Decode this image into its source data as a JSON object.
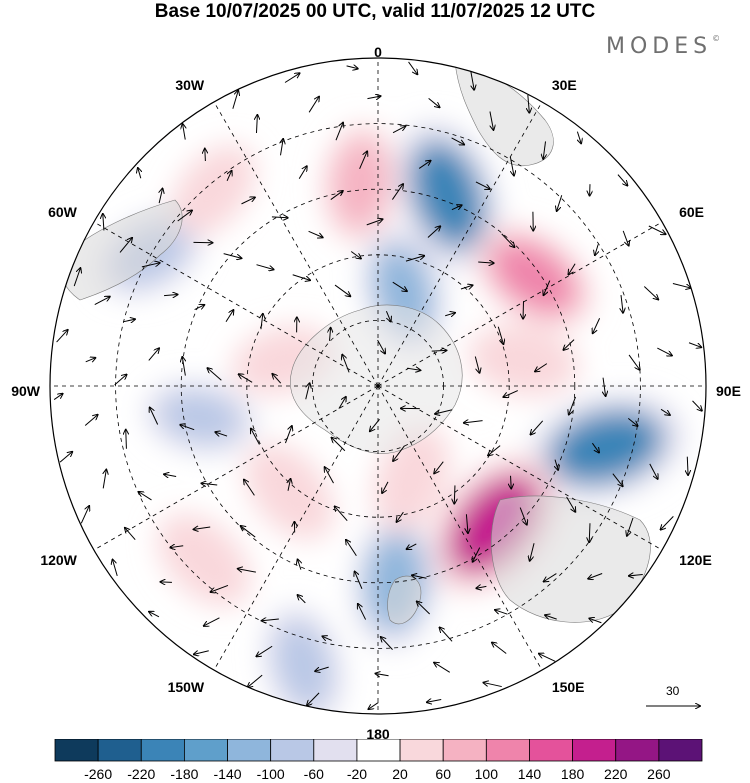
{
  "title": "Base 10/07/2025 00 UTC, valid 11/07/2025 12 UTC",
  "brand": "MODES",
  "brand_mark": "©",
  "projection": "south-polar-stereographic",
  "longitude_labels": [
    {
      "text": "0",
      "lon": 0
    },
    {
      "text": "30E",
      "lon": 30
    },
    {
      "text": "60E",
      "lon": 60
    },
    {
      "text": "90E",
      "lon": 90
    },
    {
      "text": "120E",
      "lon": 120
    },
    {
      "text": "150E",
      "lon": 150
    },
    {
      "text": "180",
      "lon": 180
    },
    {
      "text": "150W",
      "lon": -150
    },
    {
      "text": "120W",
      "lon": -120
    },
    {
      "text": "90W",
      "lon": -90
    },
    {
      "text": "60W",
      "lon": -60
    },
    {
      "text": "30W",
      "lon": -30
    }
  ],
  "vector_reference": {
    "label": "30",
    "value": 30
  },
  "anomaly_centers": [
    {
      "lon": 20,
      "lat_ring": 0.62,
      "value": -180
    },
    {
      "lon": 55,
      "lat_ring": 0.58,
      "value": 120
    },
    {
      "lon": 105,
      "lat_ring": 0.72,
      "value": -200
    },
    {
      "lon": 140,
      "lat_ring": 0.55,
      "value": 200
    },
    {
      "lon": 175,
      "lat_ring": 0.6,
      "value": -120
    },
    {
      "lon": 160,
      "lat_ring": 0.3,
      "value": 60
    },
    {
      "lon": -165,
      "lat_ring": 0.88,
      "value": -80
    },
    {
      "lon": -135,
      "lat_ring": 0.75,
      "value": 60
    },
    {
      "lon": -140,
      "lat_ring": 0.42,
      "value": 60
    },
    {
      "lon": -100,
      "lat_ring": 0.55,
      "value": -60
    },
    {
      "lon": -60,
      "lat_ring": 0.8,
      "value": -60
    },
    {
      "lon": -40,
      "lat_ring": 0.78,
      "value": 40
    },
    {
      "lon": -5,
      "lat_ring": 0.62,
      "value": 80
    },
    {
      "lon": 15,
      "lat_ring": 0.3,
      "value": -100
    },
    {
      "lon": 80,
      "lat_ring": 0.45,
      "value": 60
    },
    {
      "lon": -75,
      "lat_ring": 0.3,
      "value": 40
    }
  ],
  "colorbar": {
    "tick_labels": [
      "-260",
      "-220",
      "-180",
      "-140",
      "-100",
      "-60",
      "-20",
      "20",
      "60",
      "100",
      "140",
      "180",
      "220",
      "260"
    ],
    "colors": [
      "#0e3a5c",
      "#1f5f8f",
      "#3b84b7",
      "#5f9fcb",
      "#8fb6dc",
      "#b9c8e6",
      "#e2e0ef",
      "#ffffff",
      "#f9d8dc",
      "#f5b2c2",
      "#ef84ab",
      "#e4529b",
      "#c41f8e",
      "#941685",
      "#5c1276"
    ]
  }
}
